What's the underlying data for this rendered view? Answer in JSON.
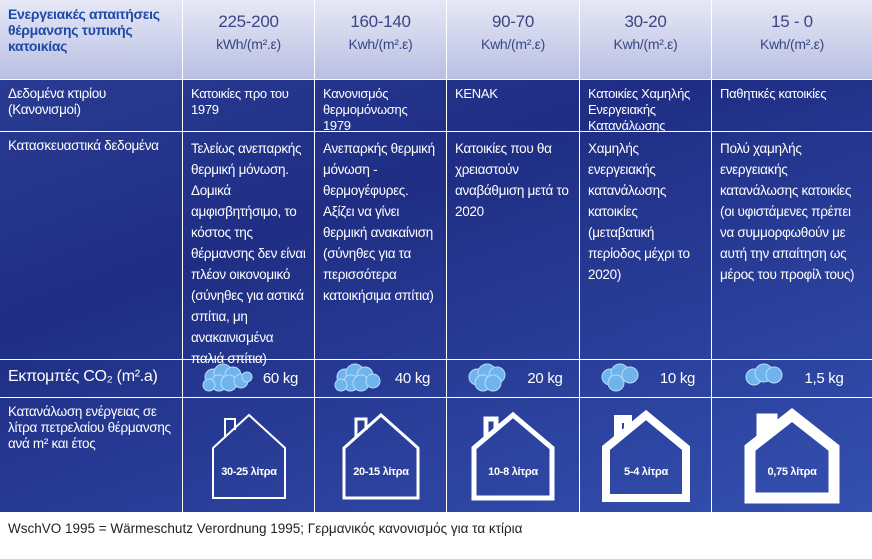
{
  "table": {
    "corner": "Ενεργειακές απαιτήσεις θέρμανσης τυπικής κατοικίας",
    "columns": [
      {
        "range": "225-200",
        "unit": "kWh/(m².ε)"
      },
      {
        "range": "160-140",
        "unit": "Kwh/(m².ε)"
      },
      {
        "range": "90-70",
        "unit": "Kwh/(m².ε)"
      },
      {
        "range": "30-20",
        "unit": "Kwh/(m².ε)"
      },
      {
        "range": "15 - 0",
        "unit": "Kwh/(m².ε)"
      }
    ],
    "rows": [
      {
        "label": "Δεδομένα κτιρίου (Κανονισμοί)",
        "cells": [
          "Κατοικίες προ του 1979",
          "Κανονισμός θερμομόνωσης 1979",
          "ΚΕΝΑΚ",
          "Κατοικίες Χαμηλής Ενεργειακής Κατανάλωσης",
          "Παθητικές κατοικίες"
        ]
      },
      {
        "label": "Κατασκευαστικά δεδομένα",
        "cells": [
          "Τελείως ανεπαρκής θερμική μόνωση. Δομικά αμφισβητήσιμο, το κόστος της θέρμανσης δεν είναι πλέον οικονομικό (σύνηθες για αστικά σπίτια, μη ανακαινισμένα παλιά σπίτια)",
          "Ανεπαρκής θερμική μόνωση - θερμογέφυρες. Αξίζει να γίνει θερμική ανακαίνιση (σύνηθες για τα περισσότερα κατοικήσιμα σπίτια)",
          "Κατοικίες που θα χρειαστούν αναβάθμιση μετά το 2020",
          "Χαμηλής ενεργειακής κατανάλωσης κατοικίες (μεταβατική περίοδος μέχρι το 2020)",
          "Πολύ χαμηλής ενεργειακής κατανάλωσης κατοικίες (οι υφιστάμενες πρέπει να συμμορφωθούν με αυτή την απαίτηση ως μέρος του προφίλ τους)"
        ]
      },
      {
        "label": "Εκπομπές CO₂ (m².a)",
        "cells": [
          "60 kg",
          "40 kg",
          "20 kg",
          "10 kg",
          "1,5 kg"
        ]
      },
      {
        "label": "Κατανάλωση ενέργειας σε λίτρα πετρελαίου θέρμανσης ανά m² και έτος",
        "cells": [
          "30-25 λίτρα",
          "20-15 λίτρα",
          "10-8 λίτρα",
          "5-4 λίτρα",
          "0,75 λίτρα"
        ]
      }
    ]
  },
  "footer": "WschVO 1995 = Wärmeschutz Verordnung 1995; Γερμανικός κανονισμός για τα κτίρια"
}
